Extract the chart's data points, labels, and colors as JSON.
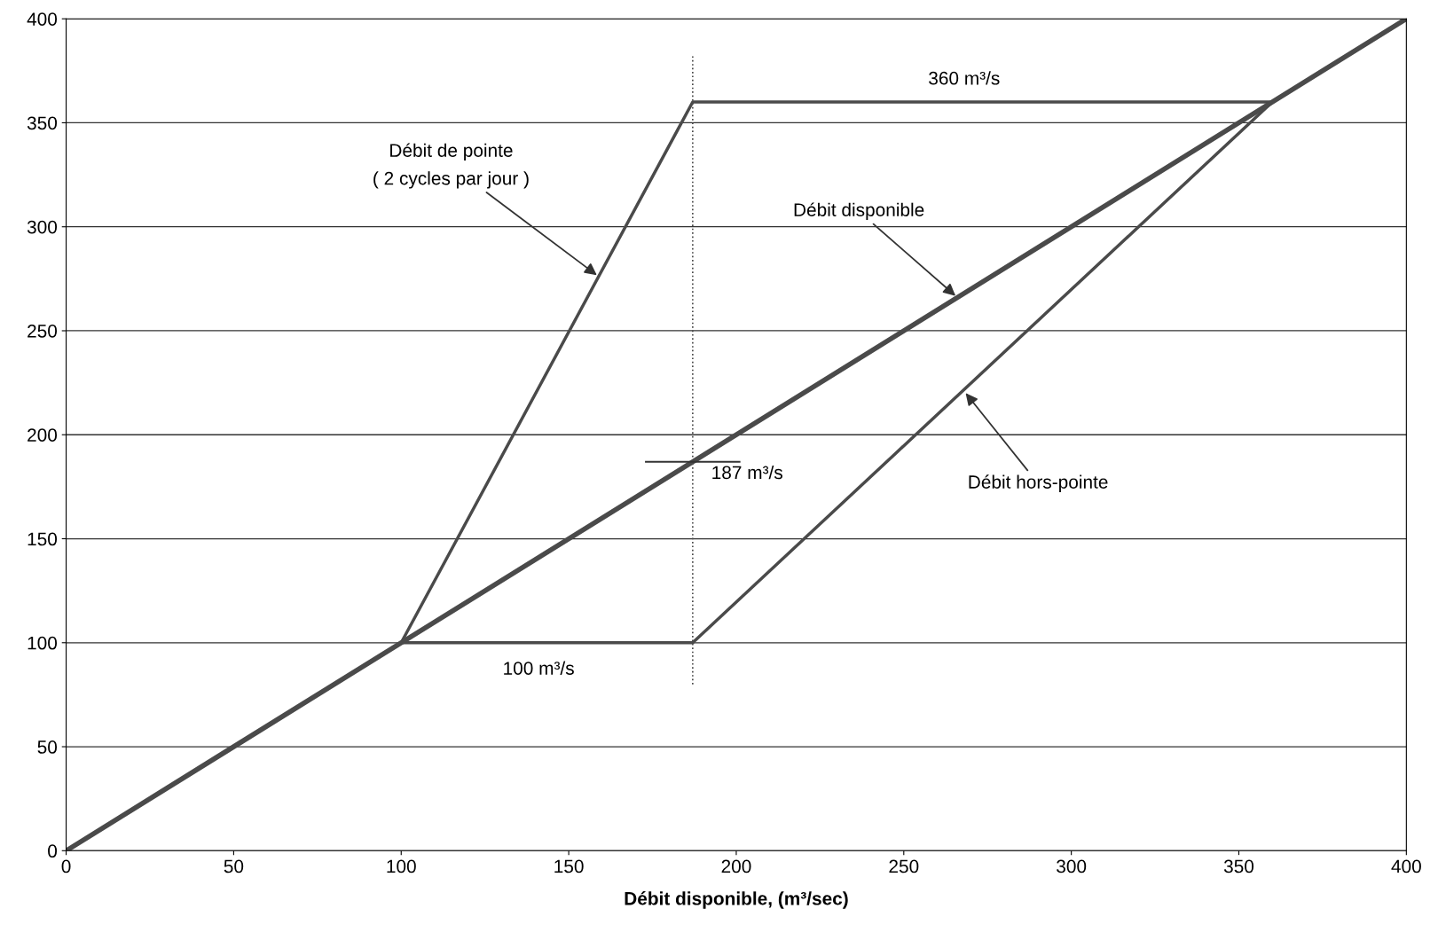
{
  "chart_data": {
    "type": "line",
    "xlabel": "Débit disponible, (m³/sec)",
    "xlim": [
      0,
      400
    ],
    "ylim": [
      0,
      400
    ],
    "xticks": [
      0,
      50,
      100,
      150,
      200,
      250,
      300,
      350,
      400
    ],
    "yticks": [
      0,
      50,
      100,
      150,
      200,
      250,
      300,
      350,
      400
    ],
    "grid": "y",
    "legend": false,
    "marker": "none",
    "line_style": "solid",
    "series": [
      {
        "color": "#4a4a4a",
        "x": [
          100,
          187,
          360,
          400
        ],
        "values": [
          100,
          360,
          360,
          400
        ]
      },
      {
        "color": "#4a4a4a",
        "x": [
          100,
          187,
          360
        ],
        "values": [
          100,
          100,
          360
        ]
      },
      {
        "color": "#4a4a4a",
        "x": [
          0,
          400
        ],
        "values": [
          0,
          400
        ]
      }
    ],
    "ref_lines": [
      {
        "axis": "x",
        "value": 187,
        "line_style": "dotted",
        "color": "#4a4a4a"
      }
    ],
    "annotations": [
      {
        "text": "Débit de pointe\n( 2 cycles par jour )",
        "x": 159,
        "y": 276
      },
      {
        "text": "Débit disponible",
        "x": 266,
        "y": 266
      },
      {
        "text": "Débit hors-pointe",
        "x": 268,
        "y": 221
      },
      {
        "text": "360 m³/s",
        "x": 268,
        "y": 360
      },
      {
        "text": "100 m³/s",
        "x": 141,
        "y": 100
      },
      {
        "text": "187 m³/s",
        "x": 187,
        "y": 187
      }
    ]
  }
}
